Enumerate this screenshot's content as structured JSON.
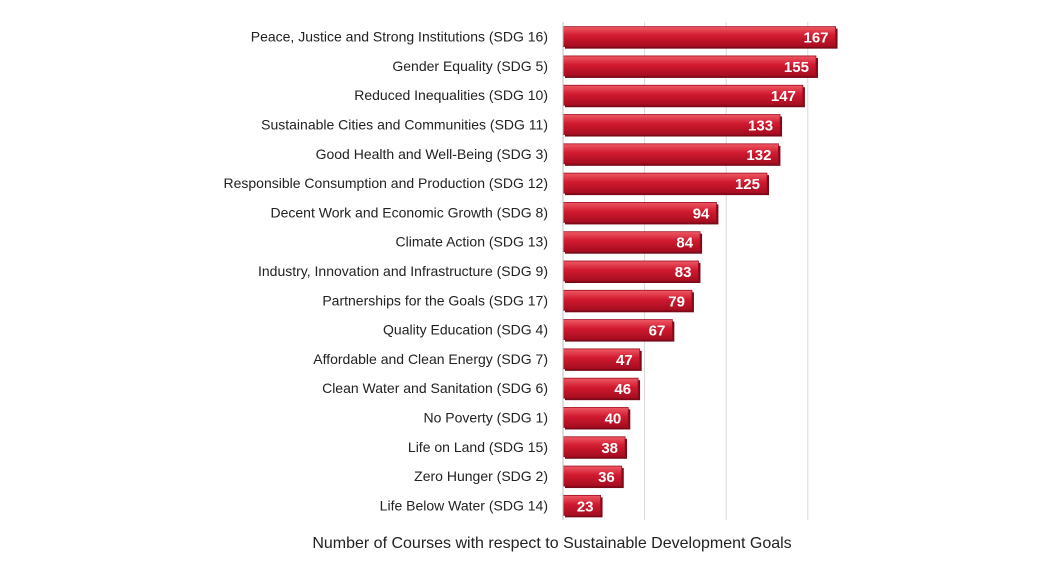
{
  "chart_data": {
    "type": "bar",
    "orientation": "horizontal",
    "categories": [
      "Peace, Justice and Strong Institutions (SDG 16)",
      "Gender Equality (SDG 5)",
      "Reduced Inequalities (SDG 10)",
      "Sustainable Cities and Communities (SDG 11)",
      "Good Health and Well-Being (SDG 3)",
      "Responsible Consumption and Production (SDG 12)",
      "Decent Work and Economic Growth (SDG 8)",
      "Climate Action (SDG 13)",
      "Industry, Innovation and Infrastructure (SDG 9)",
      "Partnerships for the Goals (SDG 17)",
      "Quality Education (SDG 4)",
      "Affordable and Clean Energy (SDG 7)",
      "Clean Water and Sanitation (SDG 6)",
      "No Poverty (SDG 1)",
      "Life on Land (SDG 15)",
      "Zero Hunger (SDG 2)",
      "Life Below Water (SDG 14)"
    ],
    "values": [
      167,
      155,
      147,
      133,
      132,
      125,
      94,
      84,
      83,
      79,
      67,
      47,
      46,
      40,
      38,
      36,
      23
    ],
    "title": "",
    "xlabel": "Number of Courses with respect to Sustainable Development Goals",
    "ylabel": "",
    "xlim": [
      0,
      200
    ],
    "grid": true,
    "legend": "none",
    "colors": {
      "bar": "#c8102e",
      "bar_light": "#e8434f",
      "bar_shadow": "#7a0a18",
      "value_label": "#ffffff"
    }
  }
}
